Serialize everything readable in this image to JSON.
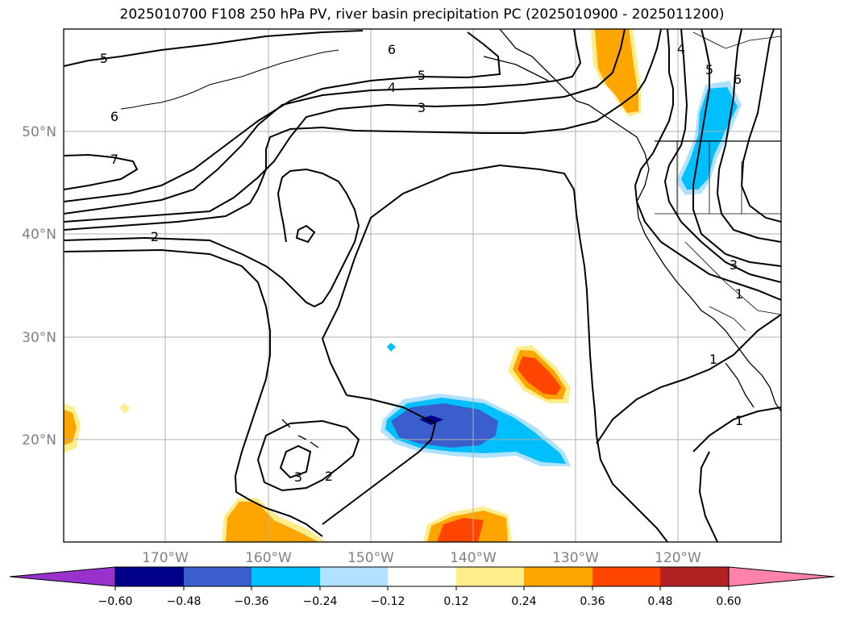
{
  "title": "2025010700 F108 250 hPa PV, river basin precipitation PC (2025010900 - 2025011200)",
  "lat_labels": [
    "50°N",
    "40°N",
    "30°N",
    "20°N"
  ],
  "lon_labels": [
    "170°W",
    "160°W",
    "150°W",
    "140°W",
    "130°W",
    "120°W"
  ],
  "contour_labels": [
    "5",
    "6",
    "7",
    "2",
    "6",
    "5",
    "4",
    "3",
    "4",
    "5",
    "6",
    "3",
    "1",
    "1",
    "1",
    "3",
    "2"
  ],
  "colorbar": {
    "ticks": [
      "−0.60",
      "−0.48",
      "−0.36",
      "−0.24",
      "−0.12",
      "0.12",
      "0.24",
      "0.36",
      "0.48",
      "0.60"
    ],
    "colors": [
      "#9932cc",
      "#00008b",
      "#3a5fcd",
      "#00bfff",
      "#b0e2ff",
      "#ffffff",
      "#ffec8b",
      "#ffa500",
      "#ff4500",
      "#b22222",
      "#ff82ab"
    ]
  }
}
